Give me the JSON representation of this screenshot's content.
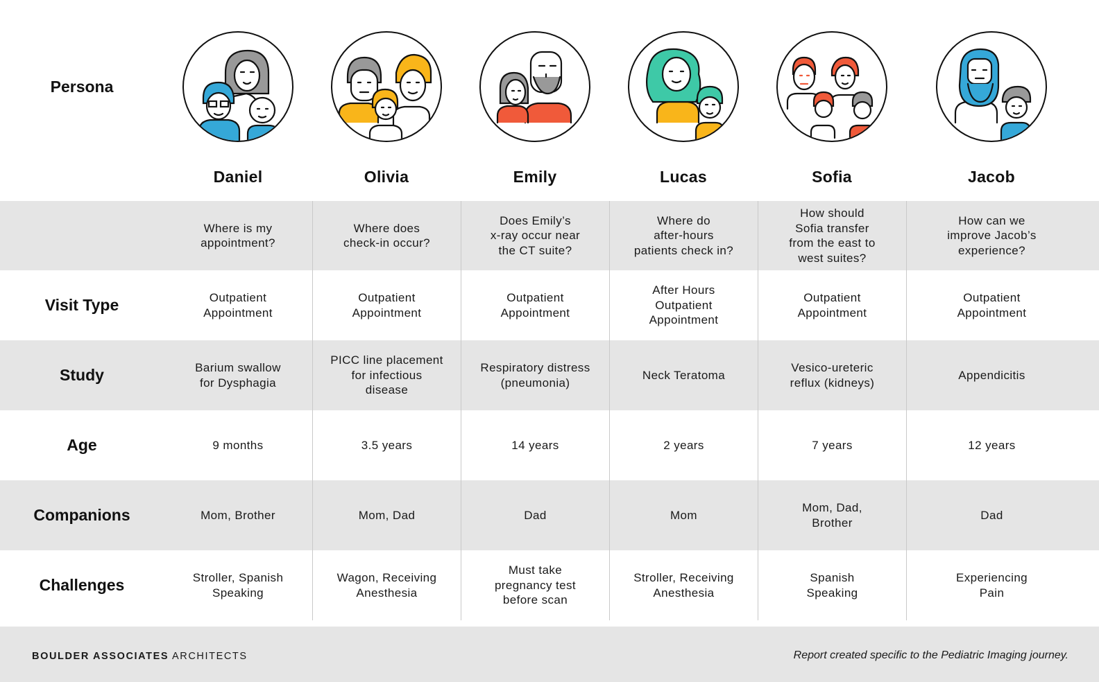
{
  "header": {
    "persona_label": "Persona"
  },
  "personas": [
    {
      "name": "Daniel",
      "question": [
        "Where is my",
        "appointment?"
      ],
      "visit_type": [
        "Outpatient",
        "Appointment"
      ],
      "study": [
        "Barium swallow",
        "for Dysphagia"
      ],
      "age": [
        "9 months"
      ],
      "companions": [
        "Mom, Brother"
      ],
      "challenges": [
        "Stroller, Spanish",
        "Speaking"
      ]
    },
    {
      "name": "Olivia",
      "question": [
        "Where does",
        "check-in occur?"
      ],
      "visit_type": [
        "Outpatient",
        "Appointment"
      ],
      "study": [
        "PICC line placement",
        "for infectious",
        "disease"
      ],
      "age": [
        "3.5 years"
      ],
      "companions": [
        "Mom, Dad"
      ],
      "challenges": [
        "Wagon, Receiving",
        "Anesthesia"
      ]
    },
    {
      "name": "Emily",
      "question": [
        "Does Emily’s",
        "x-ray occur near",
        "the CT suite?"
      ],
      "visit_type": [
        "Outpatient",
        "Appointment"
      ],
      "study": [
        "Respiratory distress",
        "(pneumonia)"
      ],
      "age": [
        "14 years"
      ],
      "companions": [
        "Dad"
      ],
      "challenges": [
        "Must take",
        "pregnancy test",
        "before scan"
      ]
    },
    {
      "name": "Lucas",
      "question": [
        "Where do",
        "after-hours",
        "patients check in?"
      ],
      "visit_type": [
        "After Hours",
        "Outpatient",
        "Appointment"
      ],
      "study": [
        "Neck Teratoma"
      ],
      "age": [
        "2 years"
      ],
      "companions": [
        "Mom"
      ],
      "challenges": [
        "Stroller, Receiving",
        "Anesthesia"
      ]
    },
    {
      "name": "Sofia",
      "question": [
        "How should",
        "Sofia transfer",
        "from the east to",
        "west suites?"
      ],
      "visit_type": [
        "Outpatient",
        "Appointment"
      ],
      "study": [
        "Vesico-ureteric",
        "reflux (kidneys)"
      ],
      "age": [
        "7 years"
      ],
      "companions": [
        "Mom, Dad,",
        "Brother"
      ],
      "challenges": [
        "Spanish",
        "Speaking"
      ]
    },
    {
      "name": "Jacob",
      "question": [
        "How can we",
        "improve Jacob’s",
        "experience?"
      ],
      "visit_type": [
        "Outpatient",
        "Appointment"
      ],
      "study": [
        "Appendicitis"
      ],
      "age": [
        "12 years"
      ],
      "companions": [
        "Dad"
      ],
      "challenges": [
        "Experiencing",
        "Pain"
      ]
    }
  ],
  "row_labels": {
    "visit_type": "Visit Type",
    "study": "Study",
    "age": "Age",
    "companions": "Companions",
    "challenges": "Challenges"
  },
  "footer": {
    "brand_bold": "BOULDER ASSOCIATES",
    "brand_regular": " ARCHITECTS",
    "note": "Report created specific to the Pediatric Imaging journey."
  },
  "avatars": [
    {
      "icon": "daniel-family-icon"
    },
    {
      "icon": "olivia-family-icon"
    },
    {
      "icon": "emily-family-icon"
    },
    {
      "icon": "lucas-family-icon"
    },
    {
      "icon": "sofia-family-icon"
    },
    {
      "icon": "jacob-family-icon"
    }
  ],
  "colors": {
    "blue": "#35a8d8",
    "yellow": "#f9b51a",
    "red": "#f05a3a",
    "green": "#3ec9a7",
    "gray": "#999999",
    "row_gray": "#e5e5e5"
  }
}
